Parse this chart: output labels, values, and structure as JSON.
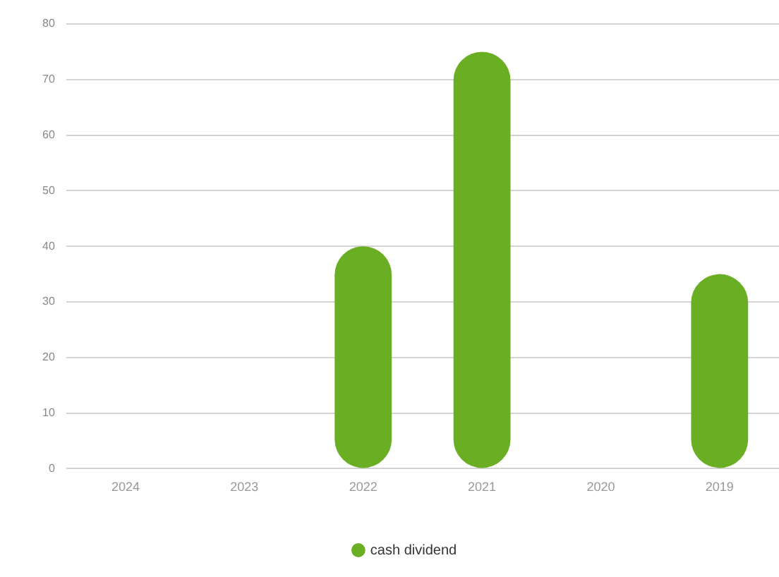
{
  "chart_data": {
    "type": "bar",
    "categories": [
      "2024",
      "2023",
      "2022",
      "2021",
      "2020",
      "2019"
    ],
    "series": [
      {
        "name": "cash dividend",
        "color": "#6aae24",
        "values": [
          null,
          null,
          40,
          75,
          null,
          35
        ]
      }
    ],
    "ylim": [
      0,
      80
    ],
    "yticks": [
      0,
      10,
      20,
      30,
      40,
      50,
      60,
      70,
      80
    ],
    "grid": "y",
    "legend": "bottom"
  }
}
